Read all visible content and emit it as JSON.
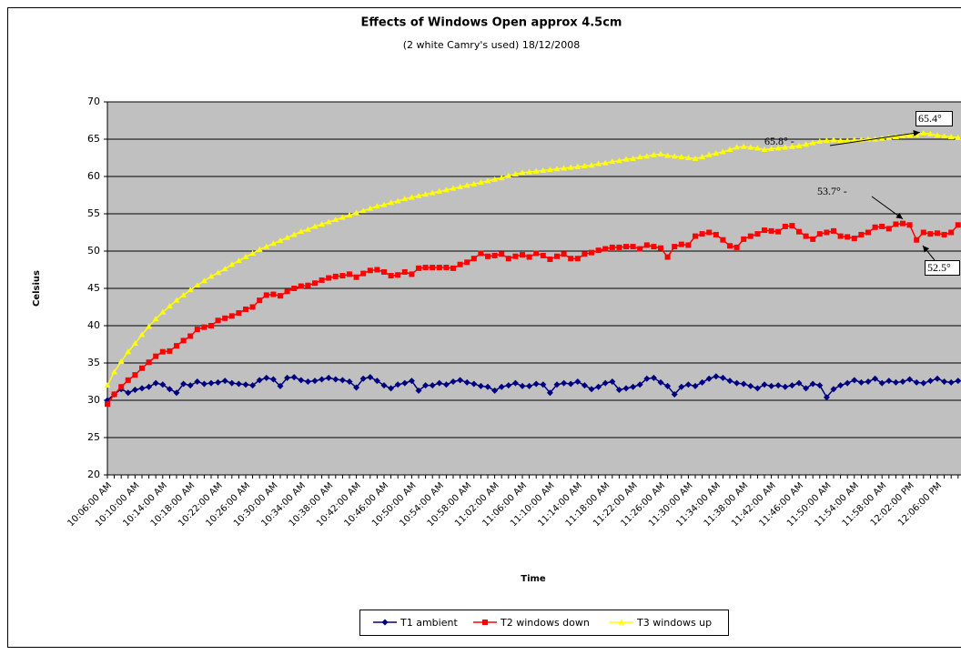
{
  "chart_data": {
    "type": "line",
    "title": "Effects of Windows Open approx 4.5cm",
    "subtitle": "(2 white Camry's used) 18/12/2008",
    "y_label": "Celsius",
    "x_label": "Time",
    "categories": [
      "10:06:00 AM",
      null,
      null,
      null,
      "10:10:00 AM",
      null,
      null,
      null,
      "10:14:00 AM",
      null,
      null,
      null,
      "10:18:00 AM",
      null,
      null,
      null,
      "10:22:00 AM",
      null,
      null,
      null,
      "10:26:00 AM",
      null,
      null,
      null,
      "10:30:00 AM",
      null,
      null,
      null,
      "10:34:00 AM",
      null,
      null,
      null,
      "10:38:00 AM",
      null,
      null,
      null,
      "10:42:00 AM",
      null,
      null,
      null,
      "10:46:00 AM",
      null,
      null,
      null,
      "10:50:00 AM",
      null,
      null,
      null,
      "10:54:00 AM",
      null,
      null,
      null,
      "10:58:00 AM",
      null,
      null,
      null,
      "11:02:00 AM",
      null,
      null,
      null,
      "11:06:00 AM",
      null,
      null,
      null,
      "11:10:00 AM",
      null,
      null,
      null,
      "11:14:00 AM",
      null,
      null,
      null,
      "11:18:00 AM",
      null,
      null,
      null,
      "11:22:00 AM",
      null,
      null,
      null,
      "11:26:00 AM",
      null,
      null,
      null,
      "11:30:00 AM",
      null,
      null,
      null,
      "11:34:00 AM",
      null,
      null,
      null,
      "11:38:00 AM",
      null,
      null,
      null,
      "11:42:00 AM",
      null,
      null,
      null,
      "11:46:00 AM",
      null,
      null,
      null,
      "11:50:00 AM",
      null,
      null,
      null,
      "11:54:00 AM",
      null,
      null,
      null,
      "11:58:00 AM",
      null,
      null,
      null,
      "12:02:00 PM",
      null,
      null,
      null,
      "12:06:00 PM",
      null,
      null,
      null
    ],
    "series": [
      {
        "name": "T1 ambient",
        "color": "#000080",
        "marker": "diamond",
        "values": [
          30.0,
          30.8,
          31.5,
          31.0,
          31.4,
          31.6,
          31.8,
          32.3,
          32.1,
          31.5,
          31.0,
          32.2,
          32.0,
          32.5,
          32.2,
          32.3,
          32.4,
          32.6,
          32.3,
          32.2,
          32.1,
          32.0,
          32.7,
          33.0,
          32.8,
          31.9,
          33.0,
          33.1,
          32.7,
          32.5,
          32.6,
          32.8,
          33.0,
          32.8,
          32.7,
          32.5,
          31.7,
          32.9,
          33.1,
          32.6,
          32.0,
          31.6,
          32.1,
          32.3,
          32.6,
          31.3,
          32.0,
          32.0,
          32.3,
          32.1,
          32.5,
          32.7,
          32.4,
          32.2,
          31.9,
          31.8,
          31.3,
          31.8,
          32.0,
          32.3,
          31.9,
          31.9,
          32.2,
          32.1,
          31.0,
          32.1,
          32.3,
          32.2,
          32.5,
          32.0,
          31.5,
          31.8,
          32.3,
          32.5,
          31.4,
          31.6,
          31.8,
          32.1,
          32.9,
          33.0,
          32.4,
          31.9,
          30.8,
          31.8,
          32.1,
          31.9,
          32.4,
          32.9,
          33.2,
          33.0,
          32.6,
          32.3,
          32.2,
          31.9,
          31.6,
          32.1,
          31.9,
          32.0,
          31.8,
          32.0,
          32.3,
          31.6,
          32.2,
          32.0,
          30.4,
          31.5,
          32.0,
          32.3,
          32.7,
          32.4,
          32.5,
          32.9,
          32.3,
          32.6,
          32.4,
          32.5,
          32.8,
          32.4,
          32.3,
          32.6,
          32.9,
          32.5,
          32.4,
          32.6
        ]
      },
      {
        "name": "T2 windows down",
        "color": "#ff0000",
        "marker": "square",
        "values": [
          29.5,
          30.8,
          31.8,
          32.7,
          33.4,
          34.3,
          35.1,
          35.9,
          36.5,
          36.6,
          37.3,
          38.0,
          38.6,
          39.5,
          39.8,
          40.0,
          40.7,
          41.0,
          41.3,
          41.7,
          42.2,
          42.5,
          43.4,
          44.1,
          44.2,
          44.0,
          44.6,
          45.0,
          45.3,
          45.4,
          45.7,
          46.1,
          46.4,
          46.6,
          46.7,
          46.9,
          46.5,
          47.0,
          47.4,
          47.5,
          47.2,
          46.7,
          46.8,
          47.2,
          46.9,
          47.7,
          47.8,
          47.8,
          47.8,
          47.8,
          47.7,
          48.2,
          48.5,
          49.0,
          49.7,
          49.3,
          49.4,
          49.6,
          49.0,
          49.3,
          49.5,
          49.2,
          49.7,
          49.4,
          48.9,
          49.3,
          49.6,
          49.0,
          49.0,
          49.6,
          49.8,
          50.1,
          50.3,
          50.5,
          50.5,
          50.6,
          50.6,
          50.3,
          50.8,
          50.6,
          50.4,
          49.2,
          50.6,
          50.9,
          50.8,
          52.0,
          52.3,
          52.5,
          52.2,
          51.5,
          50.7,
          50.5,
          51.6,
          52.0,
          52.3,
          52.8,
          52.7,
          52.6,
          53.3,
          53.4,
          52.6,
          52.0,
          51.6,
          52.3,
          52.5,
          52.7,
          52.0,
          51.9,
          51.7,
          52.2,
          52.5,
          53.2,
          53.3,
          53.0,
          53.6,
          53.7,
          53.5,
          51.5,
          52.5,
          52.3,
          52.4,
          52.2,
          52.5,
          53.5
        ]
      },
      {
        "name": "T3 windows up",
        "color": "#ffff00",
        "marker": "triangle",
        "values": [
          32.0,
          33.8,
          35.2,
          36.5,
          37.6,
          38.8,
          39.9,
          40.9,
          41.8,
          42.6,
          43.4,
          44.1,
          44.8,
          45.4,
          46.0,
          46.6,
          47.1,
          47.6,
          48.2,
          48.7,
          49.2,
          49.7,
          50.2,
          50.6,
          51.0,
          51.4,
          51.8,
          52.2,
          52.6,
          52.9,
          53.3,
          53.6,
          53.9,
          54.2,
          54.5,
          54.8,
          55.1,
          55.4,
          55.7,
          56.0,
          56.2,
          56.5,
          56.7,
          57.0,
          57.2,
          57.4,
          57.6,
          57.8,
          58.0,
          58.2,
          58.4,
          58.6,
          58.8,
          59.0,
          59.2,
          59.4,
          59.6,
          59.8,
          60.1,
          60.3,
          60.5,
          60.6,
          60.7,
          60.8,
          60.9,
          61.0,
          61.1,
          61.2,
          61.3,
          61.4,
          61.5,
          61.7,
          61.8,
          62.0,
          62.1,
          62.3,
          62.4,
          62.6,
          62.7,
          62.9,
          63.0,
          62.8,
          62.7,
          62.6,
          62.5,
          62.4,
          62.6,
          62.9,
          63.1,
          63.3,
          63.6,
          63.9,
          64.0,
          63.9,
          63.8,
          63.6,
          63.7,
          63.8,
          63.9,
          64.0,
          64.1,
          64.3,
          64.5,
          64.7,
          64.8,
          64.9,
          64.8,
          64.8,
          64.9,
          64.9,
          65.0,
          65.0,
          65.1,
          65.2,
          65.3,
          65.4,
          65.5,
          65.6,
          65.8,
          65.7,
          65.5,
          65.4,
          65.3,
          65.2
        ]
      }
    ],
    "ylim": [
      20,
      70
    ],
    "yticks": [
      20,
      25,
      30,
      35,
      40,
      45,
      50,
      55,
      60,
      65,
      70
    ],
    "grid": true,
    "legend": "bottom",
    "annotations": [
      "65.8° -",
      "65.4°",
      "53.7° -",
      "52.5°"
    ]
  }
}
